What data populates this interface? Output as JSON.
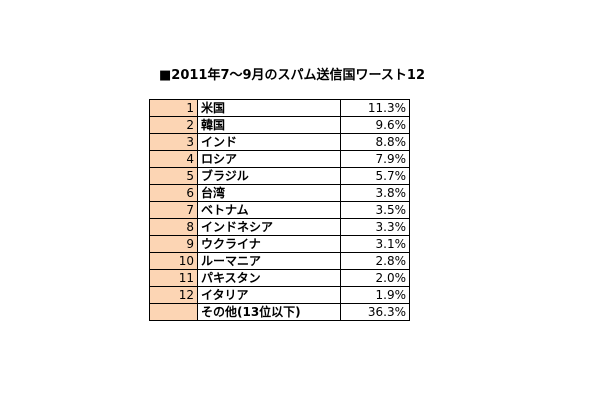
{
  "title": "■2011年7〜9月のスパム送信国ワースト12",
  "colors": {
    "rank_cell_bg": "#fcd5b4",
    "border": "#000000"
  },
  "rows": [
    {
      "rank": "1",
      "country": "米国",
      "percent": "11.3%"
    },
    {
      "rank": "2",
      "country": "韓国",
      "percent": "9.6%"
    },
    {
      "rank": "3",
      "country": "インド",
      "percent": "8.8%"
    },
    {
      "rank": "4",
      "country": "ロシア",
      "percent": "7.9%"
    },
    {
      "rank": "5",
      "country": "ブラジル",
      "percent": "5.7%"
    },
    {
      "rank": "6",
      "country": "台湾",
      "percent": "3.8%"
    },
    {
      "rank": "7",
      "country": "ベトナム",
      "percent": "3.5%"
    },
    {
      "rank": "8",
      "country": "インドネシア",
      "percent": "3.3%"
    },
    {
      "rank": "9",
      "country": "ウクライナ",
      "percent": "3.1%"
    },
    {
      "rank": "10",
      "country": "ルーマニア",
      "percent": "2.8%"
    },
    {
      "rank": "11",
      "country": "パキスタン",
      "percent": "2.0%"
    },
    {
      "rank": "12",
      "country": "イタリア",
      "percent": "1.9%"
    },
    {
      "rank": "",
      "country": "その他(13位以下)",
      "percent": "36.3%"
    }
  ]
}
